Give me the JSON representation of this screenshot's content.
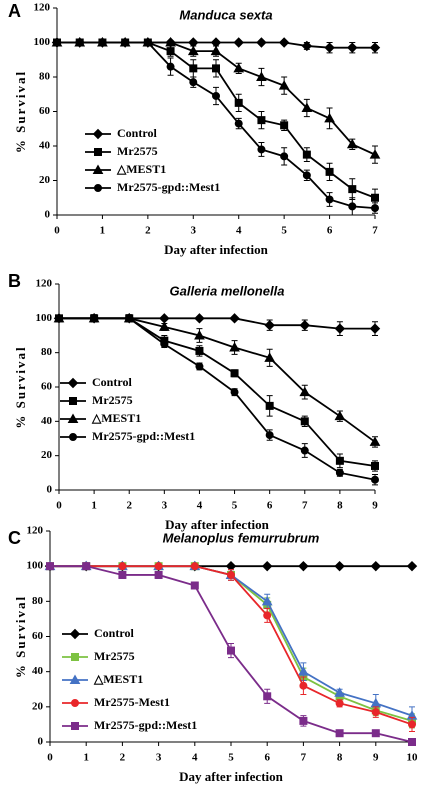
{
  "chart_data": [
    {
      "panel": "A",
      "type": "line",
      "title": "Manduca sexta",
      "xlabel": "Day after infection",
      "ylabel": "% Survival",
      "x": [
        0,
        0.5,
        1,
        1.5,
        2,
        2.5,
        3,
        3.5,
        4,
        4.5,
        5,
        5.5,
        6,
        6.5,
        7
      ],
      "xlim": [
        0,
        7
      ],
      "xticks": [
        0,
        1,
        2,
        3,
        4,
        5,
        6,
        7
      ],
      "ylim": [
        0,
        120
      ],
      "yticks": [
        0,
        20,
        40,
        60,
        80,
        100,
        120
      ],
      "legend": "lower left",
      "series": [
        {
          "name": "Control",
          "color": "#000000",
          "marker": "diamond",
          "values": [
            100,
            100,
            100,
            100,
            100,
            100,
            100,
            100,
            100,
            100,
            100,
            98,
            97,
            97,
            97
          ],
          "errors": [
            0,
            0,
            0,
            0,
            0,
            0,
            0,
            0,
            0,
            0,
            0,
            2,
            3,
            3,
            3
          ]
        },
        {
          "name": "Mr2575",
          "color": "#000000",
          "marker": "square",
          "values": [
            100,
            100,
            100,
            100,
            100,
            95,
            85,
            85,
            65,
            55,
            52,
            35,
            25,
            15,
            10
          ],
          "errors": [
            0,
            0,
            0,
            0,
            0,
            3,
            5,
            5,
            5,
            5,
            3,
            4,
            5,
            6,
            5
          ]
        },
        {
          "name": "△MEST1",
          "color": "#000000",
          "marker": "triangle",
          "values": [
            100,
            100,
            100,
            100,
            100,
            100,
            95,
            95,
            85,
            80,
            75,
            62,
            56,
            41,
            35
          ],
          "errors": [
            0,
            0,
            0,
            0,
            0,
            0,
            3,
            3,
            3,
            5,
            5,
            5,
            6,
            3,
            5
          ]
        },
        {
          "name": "Mr2575-gpd::Mest1",
          "color": "#000000",
          "marker": "circle",
          "values": [
            100,
            100,
            100,
            100,
            100,
            86,
            77,
            69,
            53,
            38,
            34,
            23,
            9,
            5,
            4
          ],
          "errors": [
            0,
            0,
            0,
            0,
            0,
            5,
            3,
            5,
            3,
            4,
            5,
            3,
            4,
            5,
            3
          ]
        }
      ]
    },
    {
      "panel": "B",
      "type": "line",
      "title": "Galleria mellonella",
      "xlabel": "Day after infection",
      "ylabel": "% Survival",
      "x": [
        0,
        1,
        2,
        3,
        4,
        5,
        6,
        7,
        8,
        9
      ],
      "xlim": [
        0,
        9
      ],
      "xticks": [
        0,
        1,
        2,
        3,
        4,
        5,
        6,
        7,
        8,
        9
      ],
      "ylim": [
        0,
        120
      ],
      "yticks": [
        0,
        20,
        40,
        60,
        80,
        100,
        120
      ],
      "legend": "lower left",
      "series": [
        {
          "name": "Control",
          "color": "#000000",
          "marker": "diamond",
          "values": [
            100,
            100,
            100,
            100,
            100,
            100,
            96,
            96,
            94,
            94
          ],
          "errors": [
            0,
            2,
            2,
            0,
            0,
            0,
            3,
            3,
            4,
            4
          ]
        },
        {
          "name": "Mr2575",
          "color": "#000000",
          "marker": "square",
          "values": [
            100,
            100,
            100,
            87,
            81,
            68,
            49,
            40,
            17,
            14
          ],
          "errors": [
            0,
            2,
            2,
            3,
            3,
            2,
            6,
            3,
            4,
            3
          ]
        },
        {
          "name": "△MEST1",
          "color": "#000000",
          "marker": "triangle",
          "values": [
            100,
            100,
            100,
            95,
            90,
            83,
            77,
            57,
            43,
            28
          ],
          "errors": [
            0,
            2,
            2,
            2,
            4,
            4,
            5,
            4,
            3,
            3
          ]
        },
        {
          "name": "Mr2575-gpd::Mest1",
          "color": "#000000",
          "marker": "circle",
          "values": [
            100,
            100,
            100,
            85,
            72,
            57,
            32,
            23,
            10,
            6
          ],
          "errors": [
            0,
            2,
            2,
            2,
            2,
            2,
            3,
            4,
            2,
            3
          ]
        }
      ]
    },
    {
      "panel": "C",
      "type": "line",
      "title": "Melanoplus femurrubrum",
      "xlabel": "Day after infection",
      "ylabel": "% Survival",
      "x": [
        0,
        1,
        2,
        3,
        4,
        5,
        6,
        7,
        8,
        9,
        10
      ],
      "xlim": [
        0,
        10
      ],
      "xticks": [
        0,
        1,
        2,
        3,
        4,
        5,
        6,
        7,
        8,
        9,
        10
      ],
      "ylim": [
        0,
        120
      ],
      "yticks": [
        0,
        20,
        40,
        60,
        80,
        100,
        120
      ],
      "legend": "lower left",
      "series": [
        {
          "name": "Control",
          "color": "#000000",
          "marker": "diamond",
          "values": [
            100,
            100,
            100,
            100,
            100,
            100,
            100,
            100,
            100,
            100,
            100
          ],
          "errors": [
            0,
            0,
            0,
            0,
            0,
            0,
            0,
            0,
            0,
            0,
            0
          ]
        },
        {
          "name": "Mr2575",
          "color": "#7dc242",
          "marker": "square",
          "values": [
            100,
            100,
            100,
            100,
            100,
            95,
            78,
            37,
            26,
            18,
            12
          ],
          "errors": [
            0,
            0,
            0,
            0,
            0,
            3,
            4,
            5,
            2,
            3,
            4
          ]
        },
        {
          "name": "△MEST1",
          "color": "#4472c4",
          "marker": "triangle",
          "values": [
            100,
            100,
            100,
            100,
            100,
            95,
            80,
            40,
            28,
            22,
            15
          ],
          "errors": [
            0,
            0,
            0,
            0,
            0,
            3,
            4,
            5,
            2,
            5,
            5
          ]
        },
        {
          "name": "Mr2575-Mest1",
          "color": "#e8262a",
          "marker": "circle",
          "values": [
            100,
            100,
            100,
            100,
            100,
            95,
            72,
            32,
            22,
            17,
            10
          ],
          "errors": [
            0,
            0,
            0,
            0,
            0,
            3,
            4,
            5,
            2,
            3,
            4
          ]
        },
        {
          "name": "Mr2575-gpd::Mest1",
          "color": "#7b2c8a",
          "marker": "square",
          "values": [
            100,
            100,
            95,
            95,
            89,
            52,
            26,
            12,
            5,
            5,
            0
          ],
          "errors": [
            0,
            0,
            2,
            2,
            2,
            4,
            4,
            3,
            1,
            1,
            1
          ]
        }
      ]
    }
  ]
}
